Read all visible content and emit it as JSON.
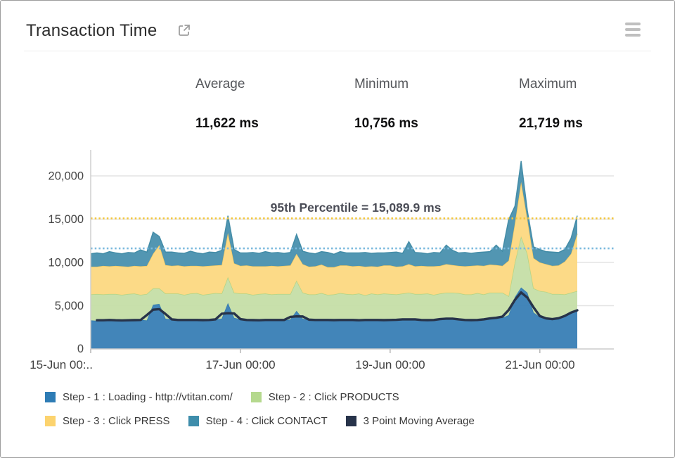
{
  "header": {
    "title": "Transaction Time",
    "external_link_icon": "open-in-new-window",
    "menu_icon": "hamburger-menu"
  },
  "stats": [
    {
      "label": "Average",
      "value": "11,622 ms"
    },
    {
      "label": "Minimum",
      "value": "10,756 ms"
    },
    {
      "label": "Maximum",
      "value": "21,719 ms"
    }
  ],
  "chart_data": {
    "type": "area",
    "stacked": true,
    "unit": "ms",
    "x_axis": "time",
    "x_start": "15-Jun 00:00",
    "x_end": "21-Jun 12:00",
    "x_sample_interval_hours": 2,
    "x_tick_hours": [
      0,
      48,
      96,
      144
    ],
    "x_tick_labels": [
      "15-Jun 00:..",
      "17-Jun 00:00",
      "19-Jun 00:00",
      "21-Jun 00:00"
    ],
    "y_tick_labels": [
      "0",
      "5,000",
      "10,000",
      "15,000",
      "20,000"
    ],
    "y_tick_values": [
      0,
      5000,
      10000,
      15000,
      20000
    ],
    "ylim": [
      0,
      23000
    ],
    "grid": true,
    "legend_position": "bottom",
    "annotation": {
      "text": "95th Percentile = 15,089.9 ms",
      "value": 15089.9,
      "color": "#f2c63d"
    },
    "average_line": {
      "value": 11622,
      "color": "#7cbade"
    },
    "series": [
      {
        "name": "Step - 1 : Loading - http://vtitan.com/",
        "color": "#2e7cb5",
        "fill": "#3a80b6",
        "edge": "#2c77ad",
        "values": [
          3300,
          3250,
          3400,
          3300,
          3350,
          3300,
          3250,
          3400,
          3350,
          3300,
          5100,
          5200,
          3500,
          3400,
          3350,
          3300,
          3400,
          3350,
          3300,
          3350,
          3400,
          3500,
          5300,
          3600,
          3400,
          3350,
          3300,
          3350,
          3300,
          3400,
          3350,
          3300,
          3400,
          4400,
          3500,
          3350,
          3300,
          3400,
          3350,
          3300,
          3350,
          3400,
          3300,
          3350,
          3300,
          3400,
          3350,
          3300,
          3350,
          3400,
          3350,
          3500,
          3400,
          3350,
          3300,
          3350,
          3400,
          3600,
          3500,
          3400,
          3350,
          3300,
          3350,
          3400,
          3500,
          3700,
          3600,
          3900,
          6000,
          7100,
          6500,
          4200,
          3700,
          3500,
          3400,
          3450,
          3800,
          4200,
          4600
        ]
      },
      {
        "name": "Step - 2 : Click PRODUCTS",
        "color": "#b5d98e",
        "fill": "#c6dfa8",
        "edge": "#afd17f",
        "values": [
          3000,
          3100,
          2900,
          3050,
          3000,
          2950,
          3100,
          3000,
          2900,
          3050,
          1900,
          1800,
          2900,
          3000,
          3050,
          2950,
          3000,
          3100,
          2950,
          3000,
          3050,
          2900,
          3000,
          2900,
          3000,
          3050,
          2950,
          3000,
          3100,
          2900,
          3000,
          3050,
          2950,
          3500,
          3000,
          2950,
          3000,
          3050,
          2900,
          3000,
          3100,
          2950,
          3000,
          3050,
          2900,
          3000,
          2950,
          3100,
          3000,
          2900,
          3050,
          3000,
          2950,
          3000,
          3100,
          2900,
          3000,
          2900,
          3000,
          3050,
          2950,
          3000,
          3100,
          2900,
          3000,
          2800,
          2900,
          2200,
          4000,
          5900,
          4500,
          2800,
          3000,
          3100,
          2950,
          2900,
          2500,
          2300,
          2100
        ]
      },
      {
        "name": "Step - 3 : Click PRESS",
        "color": "#fcd36e",
        "fill": "#fcd982",
        "edge": "#f6c95e",
        "values": [
          3200,
          3150,
          3300,
          3200,
          3250,
          3300,
          3150,
          3200,
          3300,
          3250,
          4000,
          5000,
          3300,
          3200,
          3250,
          3300,
          3200,
          3150,
          3300,
          3250,
          3200,
          3300,
          5100,
          3400,
          3200,
          3250,
          3300,
          3200,
          3150,
          3300,
          3200,
          3250,
          3300,
          3100,
          3300,
          3200,
          3250,
          3300,
          3200,
          3150,
          3200,
          3300,
          3250,
          3200,
          3300,
          3150,
          3200,
          3250,
          3300,
          3200,
          3150,
          3300,
          3200,
          3250,
          3150,
          3300,
          3200,
          3300,
          3200,
          3150,
          3250,
          3300,
          3200,
          3300,
          3250,
          3200,
          3100,
          4100,
          4500,
          6300,
          4000,
          3500,
          3300,
          3200,
          3250,
          3300,
          3800,
          4500,
          6600
        ]
      },
      {
        "name": "Step - 4 : Click CONTACT",
        "color": "#3e8dab",
        "fill": "#4b92af",
        "edge": "#3a86a2",
        "values": [
          1500,
          1600,
          1400,
          1700,
          1500,
          1450,
          1650,
          1500,
          1900,
          1600,
          2500,
          1000,
          1500,
          1600,
          1450,
          1500,
          1700,
          1500,
          1450,
          1600,
          1500,
          1700,
          2000,
          1600,
          1500,
          1450,
          1600,
          1500,
          1700,
          1500,
          1600,
          1450,
          1500,
          2250,
          1500,
          1600,
          1450,
          1500,
          1700,
          1500,
          1600,
          1450,
          1550,
          1500,
          1650,
          1500,
          1600,
          1450,
          1500,
          1700,
          1500,
          2600,
          1600,
          1500,
          1450,
          1600,
          1500,
          2200,
          1700,
          1500,
          1600,
          1450,
          1500,
          1600,
          1500,
          2300,
          1700,
          4750,
          2000,
          2419,
          1000,
          1300,
          1500,
          1450,
          1600,
          1500,
          1400,
          1800,
          2100
        ]
      },
      {
        "name": "3 Point Moving Average",
        "color": "#27334a",
        "derived_from": "Step - 1",
        "derivation": "3-point moving average"
      }
    ]
  }
}
